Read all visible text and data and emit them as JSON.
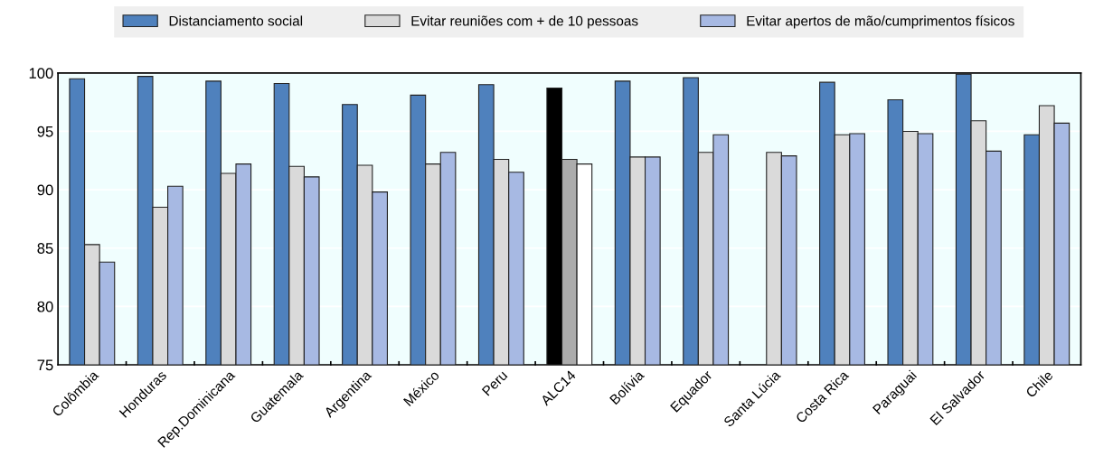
{
  "chart_data": {
    "type": "bar",
    "categories": [
      "Colômbia",
      "Honduras",
      "Rep.Dominicana",
      "Guatemala",
      "Argentina",
      "México",
      "Peru",
      "ALC14",
      "Bolívia",
      "Equador",
      "Santa Lúcia",
      "Costa Rica",
      "Paraguai",
      "El Salvador",
      "Chile"
    ],
    "series": [
      {
        "name": "Distanciamento social",
        "color": "#4f81bd",
        "colors": [
          "#4f81bd",
          "#4f81bd",
          "#4f81bd",
          "#4f81bd",
          "#4f81bd",
          "#4f81bd",
          "#4f81bd",
          "#000000",
          "#4f81bd",
          "#4f81bd",
          "#4f81bd",
          "#4f81bd",
          "#4f81bd",
          "#4f81bd",
          "#4f81bd"
        ],
        "values": [
          99.5,
          99.7,
          99.3,
          99.1,
          97.3,
          98.1,
          99.0,
          98.7,
          99.3,
          99.6,
          null,
          99.2,
          97.7,
          99.9,
          94.7
        ]
      },
      {
        "name": "Evitar reuniões com + de 10 pessoas",
        "color": "#dadada",
        "colors": [
          "#dadada",
          "#dadada",
          "#dadada",
          "#dadada",
          "#dadada",
          "#dadada",
          "#dadada",
          "#acacac",
          "#dadada",
          "#dadada",
          "#dadada",
          "#dadada",
          "#dadada",
          "#dadada",
          "#dadada"
        ],
        "values": [
          85.3,
          88.5,
          91.4,
          92.0,
          92.1,
          92.2,
          92.6,
          92.6,
          92.8,
          93.2,
          93.2,
          94.7,
          95.0,
          95.9,
          97.2
        ]
      },
      {
        "name": "Evitar apertos de mão/cumprimentos físicos",
        "color": "#a7b9e3",
        "colors": [
          "#a7b9e3",
          "#a7b9e3",
          "#a7b9e3",
          "#a7b9e3",
          "#a7b9e3",
          "#a7b9e3",
          "#a7b9e3",
          "#ffffff",
          "#a7b9e3",
          "#a7b9e3",
          "#a7b9e3",
          "#a7b9e3",
          "#a7b9e3",
          "#a7b9e3",
          "#a7b9e3"
        ],
        "values": [
          83.8,
          90.3,
          92.2,
          91.1,
          89.8,
          93.2,
          91.5,
          92.2,
          92.8,
          94.7,
          92.9,
          94.8,
          94.8,
          93.3,
          95.7
        ]
      }
    ],
    "ylim": [
      75,
      100
    ],
    "yticks": [
      75,
      80,
      85,
      90,
      95,
      100
    ],
    "grid": "y",
    "legend": "top"
  }
}
